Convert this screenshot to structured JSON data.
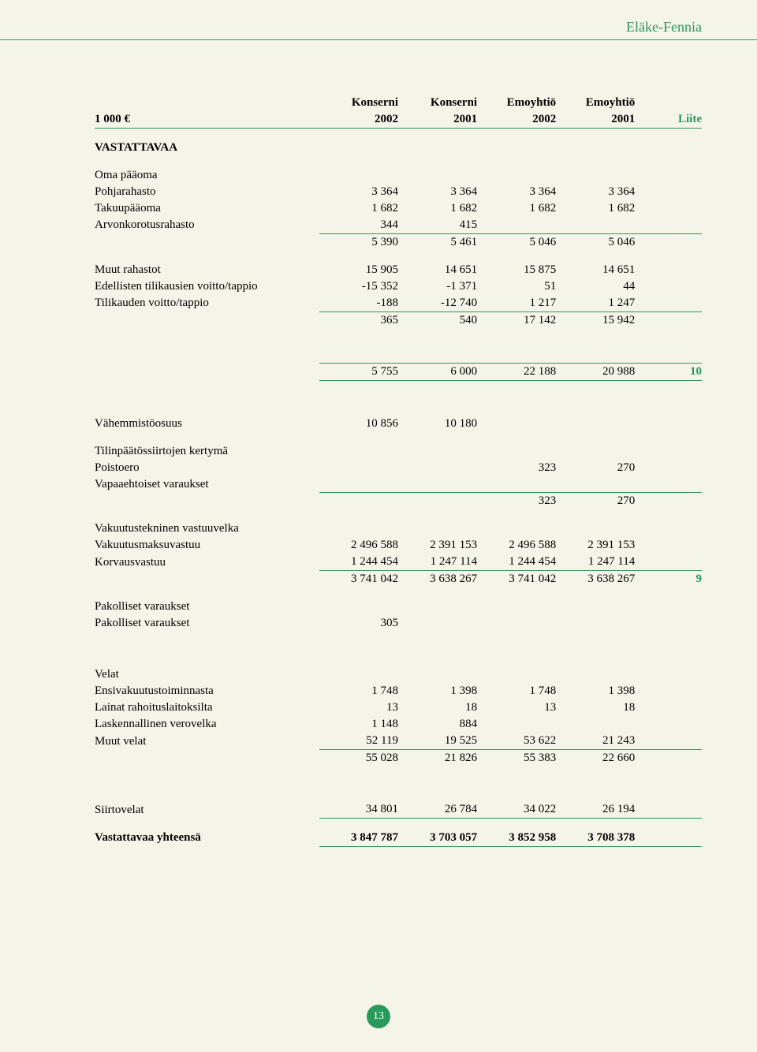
{
  "brand": "Eläke-Fennia",
  "page_number": "13",
  "header": {
    "unit": "1 000 €",
    "cols": [
      {
        "top": "Konserni",
        "year": "2002"
      },
      {
        "top": "Konserni",
        "year": "2001"
      },
      {
        "top": "Emoyhtiö",
        "year": "2002"
      },
      {
        "top": "Emoyhtiö",
        "year": "2001"
      }
    ],
    "liite": "Liite"
  },
  "sections": [
    {
      "title": "VASTATTAVAA",
      "blocks": [
        {
          "heading": "Oma pääoma",
          "rows": [
            {
              "label": "Pohjarahasto",
              "v": [
                "3 364",
                "3 364",
                "3 364",
                "3 364"
              ]
            },
            {
              "label": "Takuupääoma",
              "v": [
                "1 682",
                "1 682",
                "1 682",
                "1 682"
              ]
            },
            {
              "label": "Arvonkorotusrahasto",
              "v": [
                "344",
                "415",
                "",
                ""
              ],
              "underline": true
            },
            {
              "label": "",
              "v": [
                "5 390",
                "5 461",
                "5 046",
                "5 046"
              ],
              "subtotal": true
            }
          ]
        },
        {
          "rows": [
            {
              "label": "Muut rahastot",
              "v": [
                "15 905",
                "14 651",
                "15 875",
                "14 651"
              ]
            },
            {
              "label": "Edellisten tilikausien voitto/tappio",
              "v": [
                "-15 352",
                "-1 371",
                "51",
                "44"
              ]
            },
            {
              "label": "Tilikauden voitto/tappio",
              "v": [
                "-188",
                "-12 740",
                "1 217",
                "1 247"
              ],
              "underline": true
            },
            {
              "label": "",
              "v": [
                "365",
                "540",
                "17 142",
                "15 942"
              ],
              "subtotal": true
            }
          ]
        },
        {
          "rows": [
            {
              "label": "",
              "v": [
                "5 755",
                "6 000",
                "22 188",
                "20 988"
              ],
              "liite": "10",
              "topline": true,
              "underline": true
            }
          ]
        },
        {
          "rows": [
            {
              "label": "Vähemmistöosuus",
              "v": [
                "10 856",
                "10 180",
                "",
                ""
              ]
            }
          ]
        },
        {
          "heading": "Tilinpäätössiirtojen kertymä",
          "rows": [
            {
              "label": "Poistoero",
              "v": [
                "",
                "",
                "323",
                "270"
              ]
            },
            {
              "label": "Vapaaehtoiset varaukset",
              "v": [
                "",
                "",
                "",
                ""
              ],
              "underline": true
            },
            {
              "label": "",
              "v": [
                "",
                "",
                "323",
                "270"
              ],
              "subtotal": true
            }
          ]
        },
        {
          "heading": "Vakuutustekninen vastuuvelka",
          "rows": [
            {
              "label": "Vakuutusmaksuvastuu",
              "v": [
                "2 496 588",
                "2 391 153",
                "2 496 588",
                "2 391 153"
              ]
            },
            {
              "label": "Korvausvastuu",
              "v": [
                "1 244 454",
                "1 247 114",
                "1 244 454",
                "1 247 114"
              ],
              "underline": true
            },
            {
              "label": "",
              "v": [
                "3 741 042",
                "3 638 267",
                "3 741 042",
                "3 638 267"
              ],
              "liite": "9",
              "subtotal": true
            }
          ]
        },
        {
          "heading": "Pakolliset varaukset",
          "rows": [
            {
              "label": "Pakolliset varaukset",
              "v": [
                "305",
                "",
                "",
                ""
              ]
            }
          ]
        },
        {
          "heading": "Velat",
          "rows": [
            {
              "label": "Ensivakuutustoiminnasta",
              "v": [
                "1 748",
                "1 398",
                "1 748",
                "1 398"
              ]
            },
            {
              "label": "Lainat rahoituslaitoksilta",
              "v": [
                "13",
                "18",
                "13",
                "18"
              ]
            },
            {
              "label": "Laskennallinen verovelka",
              "v": [
                "1 148",
                "884",
                "",
                ""
              ]
            },
            {
              "label": "Muut velat",
              "v": [
                "52 119",
                "19 525",
                "53 622",
                "21 243"
              ],
              "underline": true
            },
            {
              "label": "",
              "v": [
                "55 028",
                "21 826",
                "55 383",
                "22 660"
              ],
              "subtotal": true
            }
          ]
        },
        {
          "rows": [
            {
              "label": "Siirtovelat",
              "v": [
                "34 801",
                "26 784",
                "34 022",
                "26 194"
              ],
              "underline": true
            }
          ]
        },
        {
          "rows": [
            {
              "label": "Vastattavaa yhteensä",
              "v": [
                "3 847 787",
                "3 703 057",
                "3 852 958",
                "3 708 378"
              ],
              "bold": true,
              "underline": true
            }
          ]
        }
      ]
    }
  ]
}
